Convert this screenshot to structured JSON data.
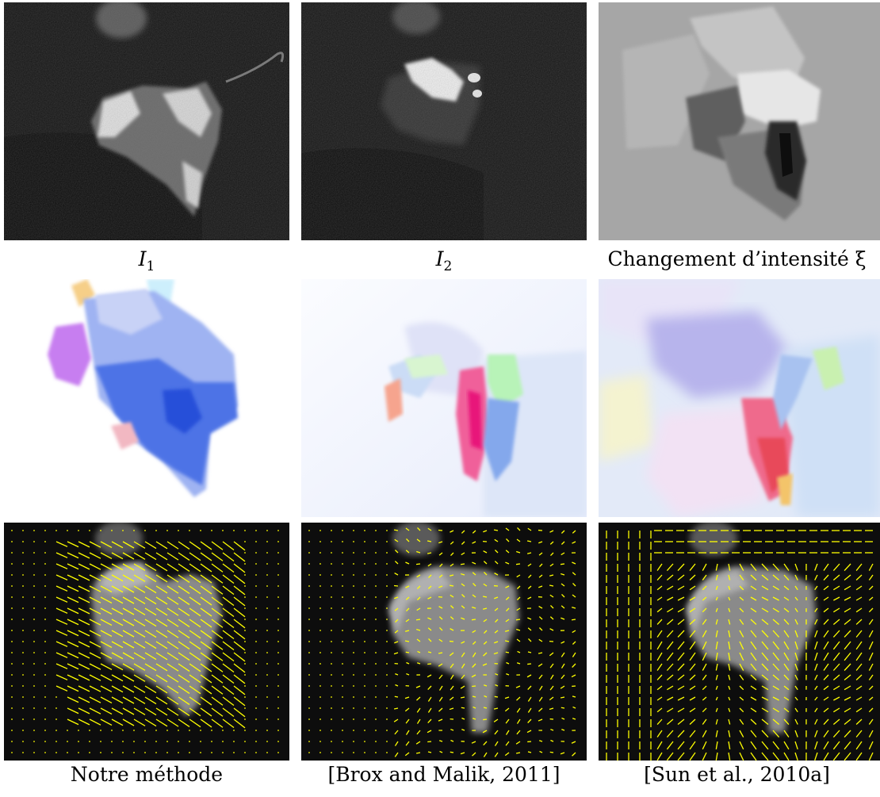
{
  "captions": {
    "i1": {
      "base": "I",
      "sub": "1"
    },
    "i2": {
      "base": "I",
      "sub": "2"
    },
    "xi": "Changement d’intensité ξ",
    "ours": "Notre méthode",
    "brox": "[Brox and Malik, 2011]",
    "sun": "[Sun et al., 2010a]"
  },
  "colors": {
    "vector": "#ffff00",
    "dark_background": "#0d0d0d",
    "intensity_background": "#a6a6a6"
  },
  "icons": {
    "vector_arrow": "arrow-glyph"
  }
}
